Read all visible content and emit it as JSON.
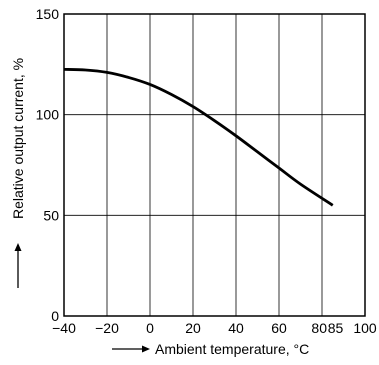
{
  "chart_data": {
    "type": "line",
    "title": "",
    "xlabel": "Ambient temperature, °C",
    "ylabel": "Relative output current, %",
    "xlim": [
      -40,
      100
    ],
    "ylim": [
      0,
      150
    ],
    "x_ticks": [
      -40,
      -20,
      0,
      20,
      40,
      60,
      80,
      85,
      100
    ],
    "x_tick_labels": [
      "−40",
      "−20",
      "0",
      "20",
      "40",
      "60",
      "80",
      "85",
      "100"
    ],
    "y_ticks": [
      0,
      50,
      100,
      150
    ],
    "y_tick_labels": [
      "0",
      "50",
      "100",
      "150"
    ],
    "grid": true,
    "series": [
      {
        "x": [
          -40,
          -30,
          -20,
          -10,
          0,
          10,
          20,
          30,
          40,
          50,
          60,
          70,
          85
        ],
        "y": [
          122.5,
          122.2,
          121,
          118.5,
          115,
          110,
          104,
          97,
          89.5,
          81.5,
          73.5,
          65.5,
          55
        ]
      }
    ]
  }
}
